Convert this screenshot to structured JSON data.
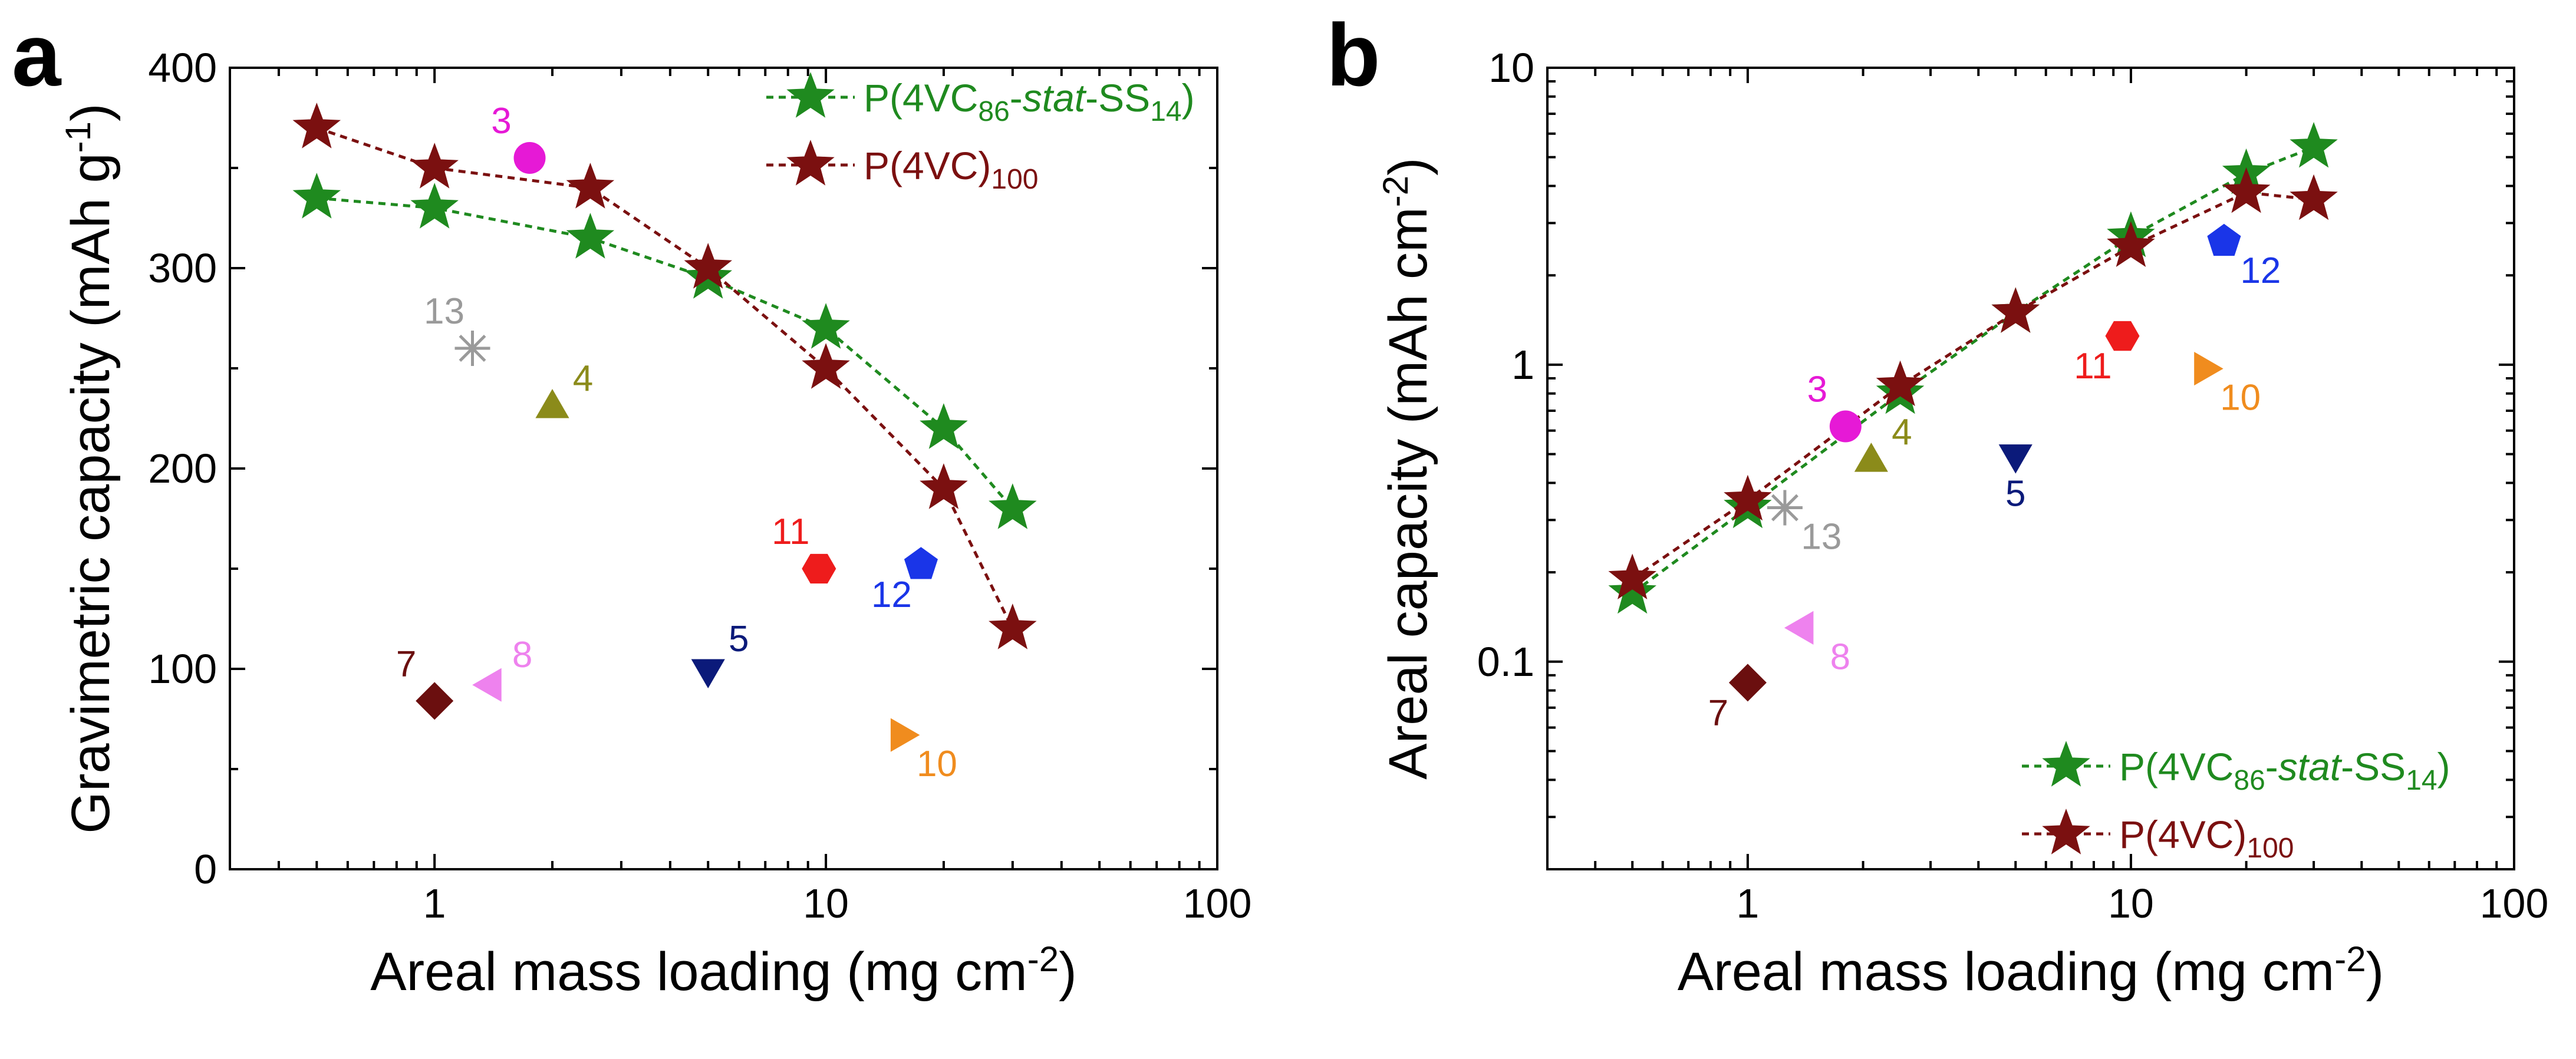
{
  "chart_data": [
    {
      "panel": "a",
      "type": "scatter",
      "xscale": "log",
      "xlim": [
        0.3,
        100
      ],
      "ylim": [
        0,
        400
      ],
      "xticks": [
        1,
        10,
        100
      ],
      "xtick_labels": [
        "1",
        "10",
        "100"
      ],
      "yticks": [
        0,
        100,
        200,
        300,
        400
      ],
      "ytick_labels": [
        "0",
        "100",
        "200",
        "300",
        "400"
      ],
      "xlabel": {
        "main": "Areal mass loading (mg cm",
        "sup": "-2",
        "end": ")"
      },
      "ylabel": {
        "main": "Gravimetric capacity (mAh g",
        "sup": "-1",
        "end": ")"
      },
      "legend_position": "top-right",
      "series": [
        {
          "name": "P(4VC86-stat-SS14)",
          "legend": [
            {
              "t": "P(4VC"
            },
            {
              "t": "86",
              "sub": true
            },
            {
              "t": "-"
            },
            {
              "t": "stat",
              "italic": true
            },
            {
              "t": "-SS"
            },
            {
              "t": "14",
              "sub": true
            },
            {
              "t": ")"
            }
          ],
          "color": "#1f8a1f",
          "marker": "star",
          "x": [
            0.5,
            1,
            2.5,
            5,
            10,
            20,
            30
          ],
          "y": [
            335,
            330,
            315,
            295,
            270,
            220,
            180
          ]
        },
        {
          "name": "P(4VC)100",
          "legend": [
            {
              "t": "P(4VC)"
            },
            {
              "t": "100",
              "sub": true
            }
          ],
          "color": "#7b1010",
          "marker": "star",
          "x": [
            0.5,
            1,
            2.5,
            5,
            10,
            20,
            30
          ],
          "y": [
            370,
            350,
            340,
            300,
            250,
            190,
            120
          ]
        }
      ],
      "reference_points": [
        {
          "label": "3",
          "x": 1.75,
          "y": 355,
          "marker": "circle",
          "color": "#e619d6",
          "label_pos": "upper-left"
        },
        {
          "label": "13",
          "x": 1.25,
          "y": 260,
          "marker": "asterisk",
          "color": "#9a9a9a",
          "label_pos": "upper-left"
        },
        {
          "label": "4",
          "x": 2.0,
          "y": 230,
          "marker": "triangle-up",
          "color": "#8b8b1a",
          "label_pos": "upper-right"
        },
        {
          "label": "11",
          "x": 9.6,
          "y": 150,
          "marker": "hexagon",
          "color": "#ee1c1c",
          "label_pos": "upper-left"
        },
        {
          "label": "12",
          "x": 17.5,
          "y": 152,
          "marker": "pentagon",
          "color": "#1a35e8",
          "label_pos": "lower-left"
        },
        {
          "label": "8",
          "x": 1.4,
          "y": 92,
          "marker": "triangle-left",
          "color": "#ee82ee",
          "label_pos": "upper-right"
        },
        {
          "label": "7",
          "x": 1.0,
          "y": 84,
          "marker": "diamond",
          "color": "#6b0f0f",
          "label_pos": "upper-left"
        },
        {
          "label": "5",
          "x": 5.0,
          "y": 100,
          "marker": "triangle-down",
          "color": "#0b1a7a",
          "label_pos": "upper-right"
        },
        {
          "label": "10",
          "x": 15.5,
          "y": 67,
          "marker": "triangle-right",
          "color": "#f08c1e",
          "label_pos": "lower-right"
        }
      ]
    },
    {
      "panel": "b",
      "type": "scatter",
      "xscale": "log",
      "yscale": "log",
      "xlim": [
        0.3,
        100
      ],
      "ylim": [
        0.02,
        10
      ],
      "xticks": [
        1,
        10,
        100
      ],
      "xtick_labels": [
        "1",
        "10",
        "100"
      ],
      "yticks": [
        0.1,
        1,
        10
      ],
      "ytick_labels": [
        "0.1",
        "1",
        "10"
      ],
      "xlabel": {
        "main": "Areal mass loading (mg cm",
        "sup": "-2",
        "end": ")"
      },
      "ylabel": {
        "main": "Areal capacity (mAh cm",
        "sup": "-2",
        "end": ")"
      },
      "legend_position": "bottom-right",
      "series": [
        {
          "name": "P(4VC86-stat-SS14)",
          "legend": [
            {
              "t": "P(4VC"
            },
            {
              "t": "86",
              "sub": true
            },
            {
              "t": "-"
            },
            {
              "t": "stat",
              "italic": true
            },
            {
              "t": "-SS"
            },
            {
              "t": "14",
              "sub": true
            },
            {
              "t": ")"
            }
          ],
          "color": "#1f8a1f",
          "marker": "star",
          "x": [
            0.5,
            1,
            2.5,
            5,
            10,
            20,
            30
          ],
          "y": [
            0.17,
            0.33,
            0.8,
            1.5,
            2.7,
            4.4,
            5.4
          ]
        },
        {
          "name": "P(4VC)100",
          "legend": [
            {
              "t": "P(4VC)"
            },
            {
              "t": "100",
              "sub": true
            }
          ],
          "color": "#7b1010",
          "marker": "star",
          "x": [
            0.5,
            1,
            2.5,
            5,
            10,
            20,
            30
          ],
          "y": [
            0.19,
            0.35,
            0.85,
            1.5,
            2.5,
            3.8,
            3.6
          ]
        }
      ],
      "reference_points": [
        {
          "label": "3",
          "x": 1.8,
          "y": 0.62,
          "marker": "circle",
          "color": "#e619d6",
          "label_pos": "upper-left"
        },
        {
          "label": "13",
          "x": 1.25,
          "y": 0.33,
          "marker": "asterisk",
          "color": "#9a9a9a",
          "label_pos": "lower-right"
        },
        {
          "label": "4",
          "x": 2.1,
          "y": 0.47,
          "marker": "triangle-up",
          "color": "#8b8b1a",
          "label_pos": "upper-right"
        },
        {
          "label": "11",
          "x": 9.5,
          "y": 1.25,
          "marker": "hexagon",
          "color": "#ee1c1c",
          "label_pos": "lower-left"
        },
        {
          "label": "12",
          "x": 17.5,
          "y": 2.6,
          "marker": "pentagon",
          "color": "#1a35e8",
          "label_pos": "lower-right"
        },
        {
          "label": "10",
          "x": 15.5,
          "y": 0.97,
          "marker": "triangle-right",
          "color": "#f08c1e",
          "label_pos": "lower-right"
        },
        {
          "label": "5",
          "x": 5.0,
          "y": 0.5,
          "marker": "triangle-down",
          "color": "#0b1a7a",
          "label_pos": "lower-center"
        },
        {
          "label": "8",
          "x": 1.4,
          "y": 0.13,
          "marker": "triangle-left",
          "color": "#ee82ee",
          "label_pos": "lower-right"
        },
        {
          "label": "7",
          "x": 1.0,
          "y": 0.085,
          "marker": "diamond",
          "color": "#6b0f0f",
          "label_pos": "lower-left"
        }
      ]
    }
  ]
}
